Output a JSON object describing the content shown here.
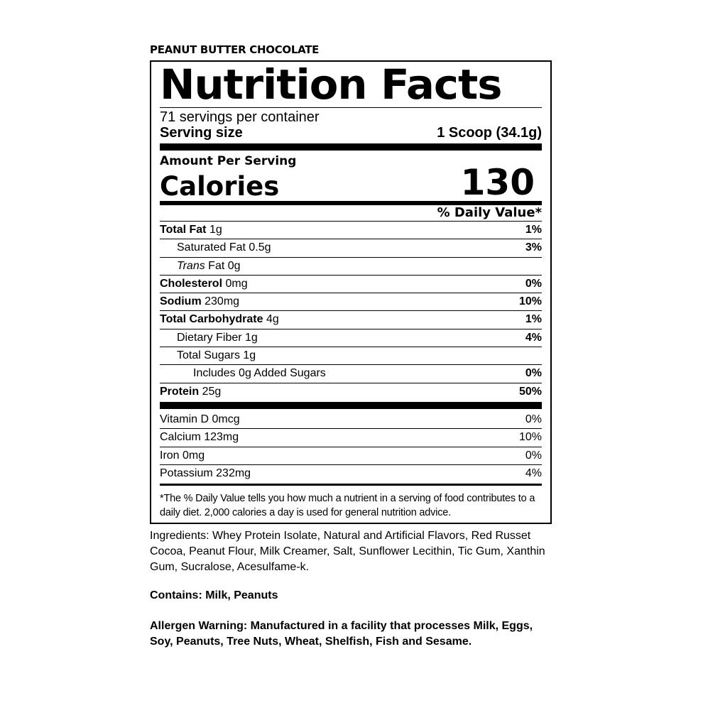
{
  "flavor": "PEANUT BUTTER CHOCOLATE",
  "title": "Nutrition Facts",
  "servings_per_container": "71 servings per container",
  "serving_size_label": "Serving size",
  "serving_size_value": "1 Scoop (34.1g)",
  "amount_per_serving": "Amount Per Serving",
  "calories_label": "Calories",
  "calories_value": "130",
  "daily_value_header": "% Daily Value*",
  "nutrients": [
    {
      "name": "Total Fat",
      "amount": "1g",
      "dv": "1%"
    },
    {
      "name": "Saturated Fat",
      "amount": "0.5g",
      "dv": "3%"
    },
    {
      "name": "Trans",
      "amount": "Fat 0g",
      "dv": ""
    },
    {
      "name": "Cholesterol",
      "amount": "0mg",
      "dv": "0%"
    },
    {
      "name": "Sodium",
      "amount": "230mg",
      "dv": "10%"
    },
    {
      "name": "Total Carbohydrate",
      "amount": "4g",
      "dv": "1%"
    },
    {
      "name": "Dietary Fiber",
      "amount": "1g",
      "dv": "4%"
    },
    {
      "name": "Total Sugars",
      "amount": "1g",
      "dv": ""
    },
    {
      "name": "Includes 0g Added Sugars",
      "amount": "",
      "dv": "0%"
    },
    {
      "name": "Protein",
      "amount": "25g",
      "dv": "50%"
    }
  ],
  "vitamins": [
    {
      "name": "Vitamin D 0mcg",
      "dv": "0%"
    },
    {
      "name": "Calcium 123mg",
      "dv": "10%"
    },
    {
      "name": "Iron 0mg",
      "dv": "0%"
    },
    {
      "name": "Potassium 232mg",
      "dv": "4%"
    }
  ],
  "footnote": "*The % Daily Value tells you how much a nutrient in a serving of food contributes to a daily diet. 2,000 calories a day is used for general nutrition advice.",
  "ingredients": "Ingredients: Whey Protein Isolate, Natural and Artificial Flavors, Red Russet Cocoa, Peanut Flour, Milk Creamer, Salt, Sunflower Lecithin, Tic Gum, Xanthin Gum, Sucralose, Acesulfame-k.",
  "contains": "Contains: Milk, Peanuts",
  "allergen_warning": "Allergen Warning: Manufactured in a facility that processes Milk, Eggs, Soy, Peanuts, Tree Nuts, Wheat, Shelfish, Fish and Sesame."
}
